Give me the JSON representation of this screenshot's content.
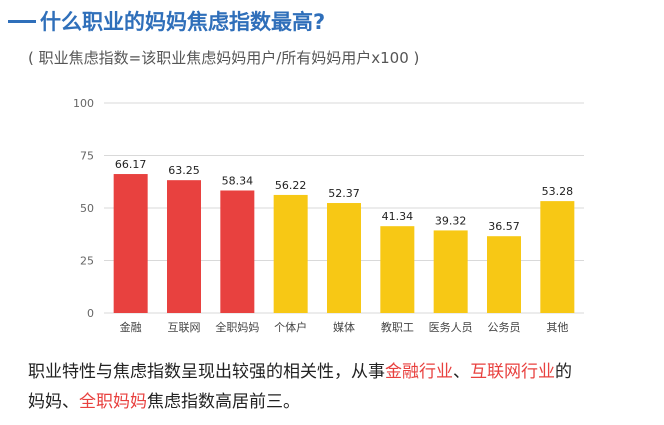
{
  "header": {
    "title": "什么职业的妈妈焦虑指数最高?",
    "subtitle": "( 职业焦虑指数=该职业焦虑妈妈用户/所有妈妈用户x100 )"
  },
  "chart_data": {
    "type": "bar",
    "categories": [
      "金融",
      "互联网",
      "全职妈妈",
      "个体户",
      "媒体",
      "教职工",
      "医务人员",
      "公务员",
      "其他"
    ],
    "values": [
      66.17,
      63.25,
      58.34,
      56.22,
      52.37,
      41.34,
      39.32,
      36.57,
      53.28
    ],
    "value_labels": [
      "66.17",
      "63.25",
      "58.34",
      "56.22",
      "52.37",
      "41.34",
      "39.32",
      "36.57",
      "53.28"
    ],
    "bar_colors": [
      "#e8413f",
      "#e8413f",
      "#e8413f",
      "#f7c815",
      "#f7c815",
      "#f7c815",
      "#f7c815",
      "#f7c815",
      "#f7c815"
    ],
    "yticks": [
      "0",
      "25",
      "50",
      "75",
      "100"
    ],
    "ylim": [
      0,
      100
    ],
    "grid": true,
    "xlabel": "",
    "ylabel": ""
  },
  "caption": {
    "line1_a": "职业特性与焦虑指数呈现出较强的相关性，从事",
    "line1_hl1": "金融行业",
    "line1_b": "、",
    "line1_hl2": "互联网行业",
    "line1_c": "的",
    "line2_a": "妈妈、",
    "line2_hl": "全职妈妈",
    "line2_b": "焦虑指数高居前三。"
  },
  "colors": {
    "title": "#2f6fba",
    "highlight": "#e8413f",
    "bar_red": "#e8413f",
    "bar_yellow": "#f7c815",
    "grid": "#d9d9d9"
  }
}
